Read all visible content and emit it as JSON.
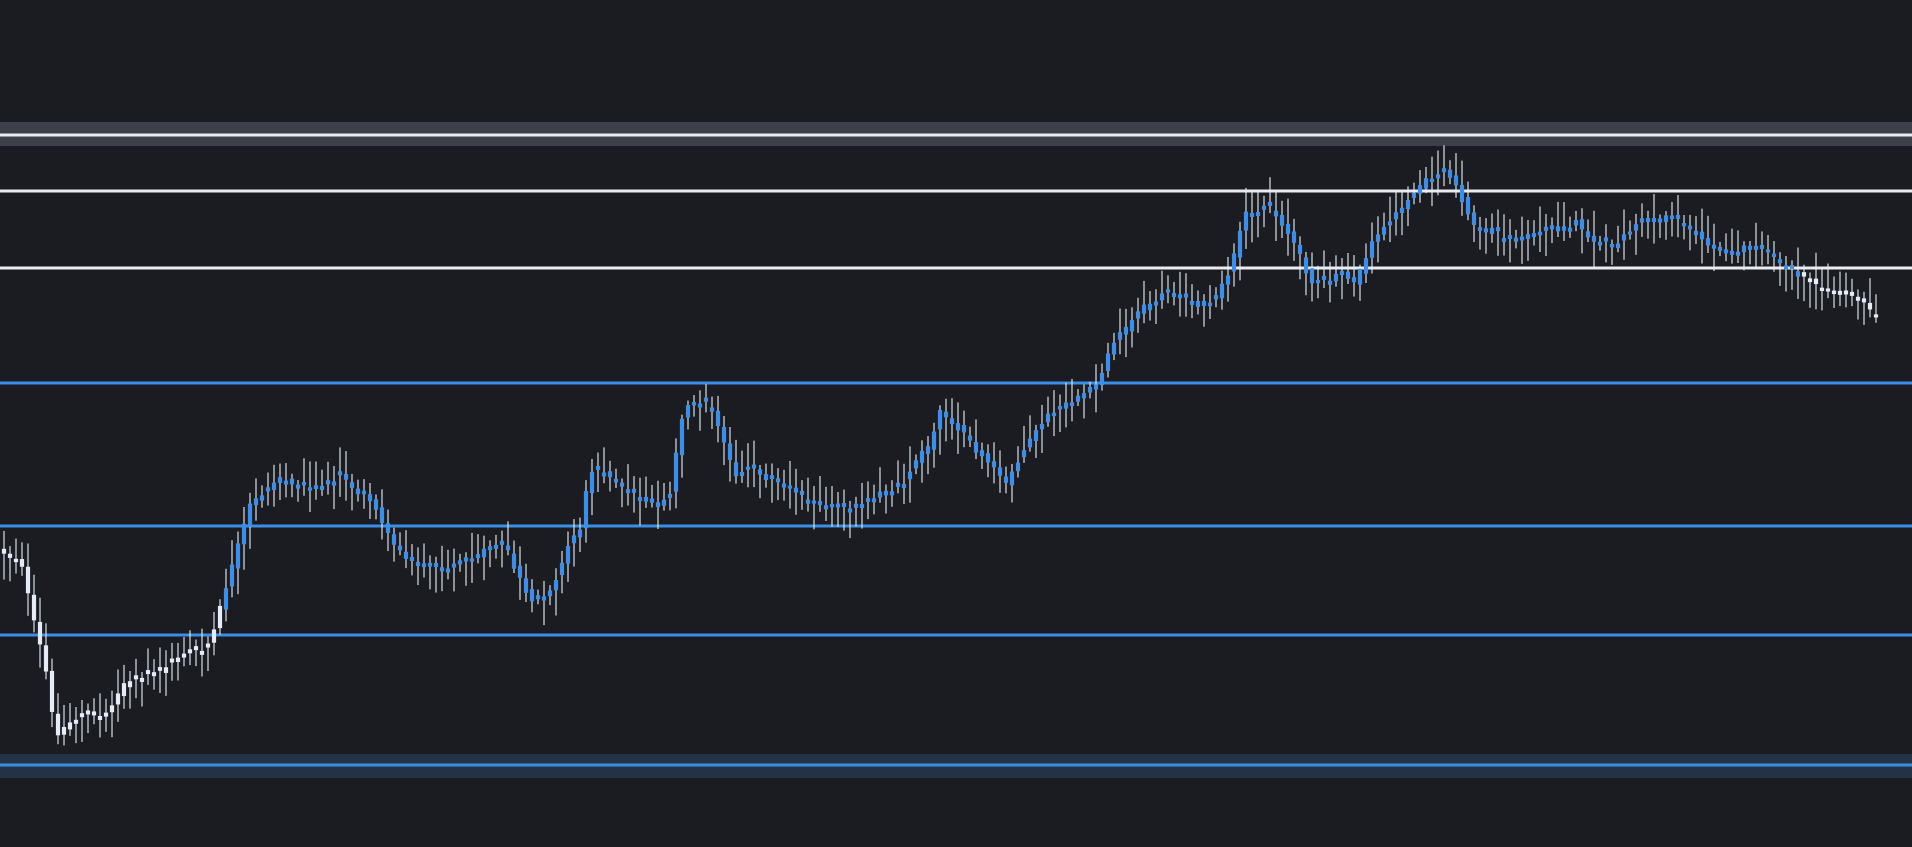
{
  "chart_data": {
    "type": "candlestick",
    "title": "",
    "xlabel": "",
    "ylabel": "",
    "axes_visible": false,
    "grid": false,
    "legend": "none",
    "ylim": [
      0,
      847
    ],
    "colors": {
      "background": "#1b1c21",
      "candle_blue": "#3d8ee8",
      "candle_white": "#e6ecf6",
      "wick": "#e8eef8",
      "level_white": "#e8ecf2",
      "level_blue": "#3b8ee6",
      "zone_gray": "#5a5f6a",
      "zone_blue": "#2a4565"
    },
    "zones": [
      {
        "name": "top-resistance-zone",
        "y1": 122,
        "y2": 146,
        "color": "#5a5f6a"
      },
      {
        "name": "bottom-support-zone",
        "y1": 754,
        "y2": 778,
        "color": "#2a4565"
      }
    ],
    "levels": [
      {
        "name": "resistance-1",
        "y": 135,
        "color": "#e8ecf2"
      },
      {
        "name": "resistance-2",
        "y": 191,
        "color": "#e8ecf2"
      },
      {
        "name": "resistance-3",
        "y": 268,
        "color": "#e8ecf2"
      },
      {
        "name": "support-1",
        "y": 383,
        "color": "#3b8ee6"
      },
      {
        "name": "support-2",
        "y": 526,
        "color": "#3b8ee6"
      },
      {
        "name": "support-3",
        "y": 635,
        "color": "#3b8ee6"
      },
      {
        "name": "support-4",
        "y": 765,
        "color": "#3b8ee6"
      }
    ],
    "price_path": [
      [
        0,
        550
      ],
      [
        22,
        565
      ],
      [
        32,
        615
      ],
      [
        45,
        665
      ],
      [
        55,
        735
      ],
      [
        75,
        718
      ],
      [
        105,
        715
      ],
      [
        128,
        680
      ],
      [
        160,
        670
      ],
      [
        180,
        655
      ],
      [
        210,
        645
      ],
      [
        225,
        590
      ],
      [
        250,
        505
      ],
      [
        280,
        478
      ],
      [
        310,
        488
      ],
      [
        340,
        475
      ],
      [
        355,
        490
      ],
      [
        375,
        505
      ],
      [
        390,
        540
      ],
      [
        410,
        560
      ],
      [
        430,
        568
      ],
      [
        455,
        563
      ],
      [
        470,
        560
      ],
      [
        490,
        548
      ],
      [
        505,
        545
      ],
      [
        515,
        570
      ],
      [
        530,
        600
      ],
      [
        545,
        598
      ],
      [
        560,
        570
      ],
      [
        570,
        540
      ],
      [
        580,
        528
      ],
      [
        590,
        470
      ],
      [
        605,
        470
      ],
      [
        620,
        490
      ],
      [
        640,
        498
      ],
      [
        660,
        505
      ],
      [
        672,
        490
      ],
      [
        680,
        420
      ],
      [
        690,
        405
      ],
      [
        700,
        400
      ],
      [
        712,
        410
      ],
      [
        722,
        440
      ],
      [
        735,
        475
      ],
      [
        750,
        465
      ],
      [
        770,
        480
      ],
      [
        790,
        490
      ],
      [
        810,
        502
      ],
      [
        830,
        505
      ],
      [
        850,
        508
      ],
      [
        870,
        500
      ],
      [
        885,
        490
      ],
      [
        900,
        485
      ],
      [
        910,
        470
      ],
      [
        920,
        455
      ],
      [
        930,
        445
      ],
      [
        940,
        410
      ],
      [
        950,
        420
      ],
      [
        960,
        430
      ],
      [
        975,
        450
      ],
      [
        990,
        463
      ],
      [
        1005,
        485
      ],
      [
        1015,
        465
      ],
      [
        1030,
        440
      ],
      [
        1045,
        418
      ],
      [
        1065,
        405
      ],
      [
        1085,
        395
      ],
      [
        1100,
        380
      ],
      [
        1110,
        345
      ],
      [
        1125,
        330
      ],
      [
        1140,
        310
      ],
      [
        1155,
        300
      ],
      [
        1170,
        290
      ],
      [
        1185,
        300
      ],
      [
        1200,
        305
      ],
      [
        1215,
        300
      ],
      [
        1230,
        270
      ],
      [
        1245,
        215
      ],
      [
        1265,
        205
      ],
      [
        1280,
        220
      ],
      [
        1295,
        245
      ],
      [
        1310,
        280
      ],
      [
        1325,
        285
      ],
      [
        1340,
        270
      ],
      [
        1355,
        285
      ],
      [
        1370,
        245
      ],
      [
        1385,
        225
      ],
      [
        1400,
        210
      ],
      [
        1415,
        190
      ],
      [
        1430,
        178
      ],
      [
        1445,
        168
      ],
      [
        1460,
        195
      ],
      [
        1472,
        225
      ],
      [
        1490,
        232
      ],
      [
        1510,
        240
      ],
      [
        1525,
        238
      ],
      [
        1545,
        230
      ],
      [
        1560,
        228
      ],
      [
        1575,
        220
      ],
      [
        1590,
        240
      ],
      [
        1610,
        248
      ],
      [
        1625,
        235
      ],
      [
        1640,
        220
      ],
      [
        1655,
        222
      ],
      [
        1670,
        215
      ],
      [
        1685,
        225
      ],
      [
        1700,
        238
      ],
      [
        1715,
        250
      ],
      [
        1730,
        255
      ],
      [
        1745,
        248
      ],
      [
        1760,
        250
      ],
      [
        1775,
        260
      ],
      [
        1790,
        270
      ],
      [
        1810,
        280
      ],
      [
        1825,
        292
      ],
      [
        1840,
        295
      ],
      [
        1860,
        300
      ],
      [
        1875,
        318
      ],
      [
        1885,
        318
      ]
    ],
    "white_up_to_x": 225,
    "white_from_x": 1800,
    "candle_spacing": 6,
    "candle_count": 313
  }
}
